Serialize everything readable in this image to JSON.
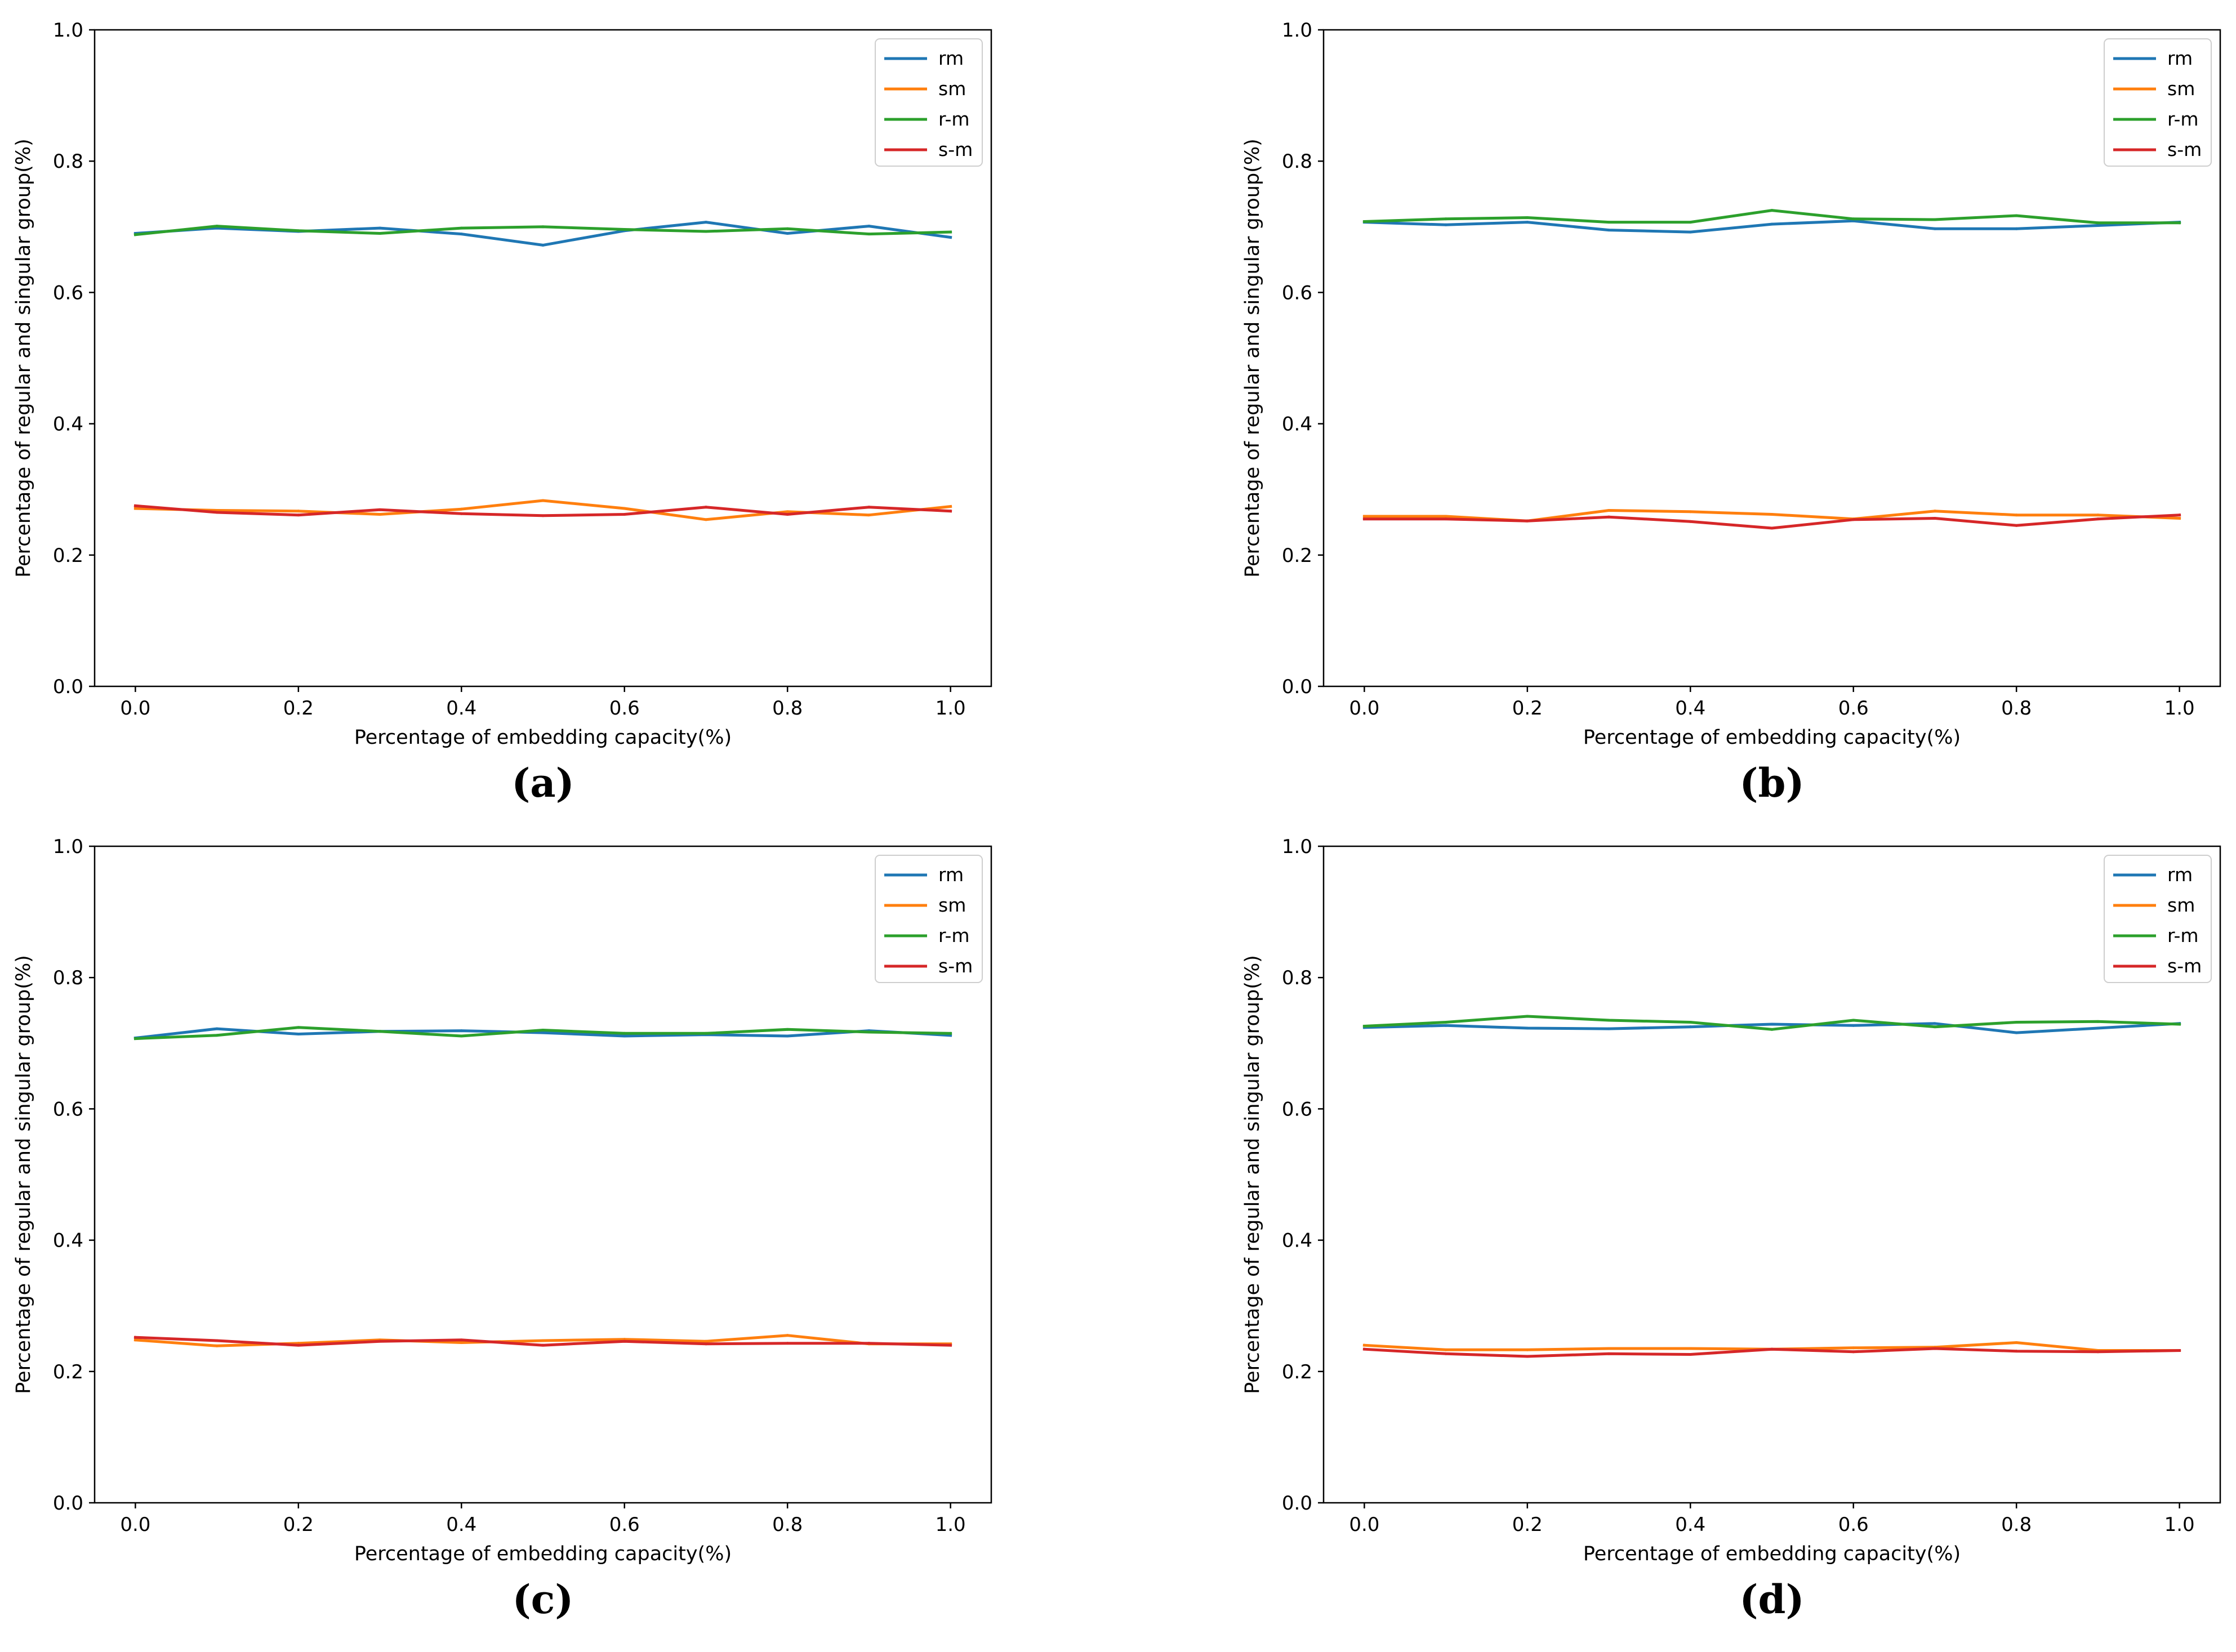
{
  "chart_data": [
    {
      "type": "line",
      "caption": "(a)",
      "xlabel": "Percentage of embedding capacity(%)",
      "ylabel": "Percentage of regular and singular group(%)",
      "xlim": [
        -0.05,
        1.05
      ],
      "ylim": [
        0.0,
        1.0
      ],
      "xticks": [
        "0.0",
        "0.2",
        "0.4",
        "0.6",
        "0.8",
        "1.0"
      ],
      "yticks": [
        "0.0",
        "0.2",
        "0.4",
        "0.6",
        "0.8",
        "1.0"
      ],
      "legend_position": "top-right",
      "x": [
        0.0,
        0.1,
        0.2,
        0.3,
        0.4,
        0.5,
        0.6,
        0.7,
        0.8,
        0.9,
        1.0
      ],
      "series": [
        {
          "name": "rm",
          "color": "#1f77b4",
          "values": [
            0.69,
            0.698,
            0.693,
            0.698,
            0.689,
            0.672,
            0.694,
            0.707,
            0.69,
            0.701,
            0.684
          ]
        },
        {
          "name": "sm",
          "color": "#ff7f0e",
          "values": [
            0.271,
            0.268,
            0.267,
            0.262,
            0.27,
            0.283,
            0.271,
            0.254,
            0.266,
            0.261,
            0.274
          ]
        },
        {
          "name": "r-m",
          "color": "#2ca02c",
          "values": [
            0.688,
            0.701,
            0.694,
            0.69,
            0.698,
            0.7,
            0.696,
            0.693,
            0.697,
            0.689,
            0.692
          ]
        },
        {
          "name": "s-m",
          "color": "#d62728",
          "values": [
            0.275,
            0.265,
            0.261,
            0.269,
            0.263,
            0.26,
            0.262,
            0.273,
            0.262,
            0.273,
            0.267
          ]
        }
      ]
    },
    {
      "type": "line",
      "caption": "(b)",
      "xlabel": "Percentage of embedding capacity(%)",
      "ylabel": "Percentage of regular and singular group(%)",
      "xlim": [
        -0.05,
        1.05
      ],
      "ylim": [
        0.0,
        1.0
      ],
      "xticks": [
        "0.0",
        "0.2",
        "0.4",
        "0.6",
        "0.8",
        "1.0"
      ],
      "yticks": [
        "0.0",
        "0.2",
        "0.4",
        "0.6",
        "0.8",
        "1.0"
      ],
      "legend_position": "top-right",
      "x": [
        0.0,
        0.1,
        0.2,
        0.3,
        0.4,
        0.5,
        0.6,
        0.7,
        0.8,
        0.9,
        1.0
      ],
      "series": [
        {
          "name": "rm",
          "color": "#1f77b4",
          "values": [
            0.707,
            0.703,
            0.707,
            0.695,
            0.692,
            0.704,
            0.709,
            0.697,
            0.697,
            0.702,
            0.707
          ]
        },
        {
          "name": "sm",
          "color": "#ff7f0e",
          "values": [
            0.259,
            0.259,
            0.252,
            0.268,
            0.266,
            0.262,
            0.255,
            0.267,
            0.261,
            0.261,
            0.256
          ]
        },
        {
          "name": "r-m",
          "color": "#2ca02c",
          "values": [
            0.708,
            0.712,
            0.714,
            0.707,
            0.707,
            0.725,
            0.712,
            0.711,
            0.717,
            0.706,
            0.706
          ]
        },
        {
          "name": "s-m",
          "color": "#d62728",
          "values": [
            0.255,
            0.255,
            0.252,
            0.258,
            0.251,
            0.241,
            0.254,
            0.256,
            0.245,
            0.255,
            0.261
          ]
        }
      ]
    },
    {
      "type": "line",
      "caption": "(c)",
      "xlabel": "Percentage of embedding capacity(%)",
      "ylabel": "Percentage of regular and singular group(%)",
      "xlim": [
        -0.05,
        1.05
      ],
      "ylim": [
        0.0,
        1.0
      ],
      "xticks": [
        "0.0",
        "0.2",
        "0.4",
        "0.6",
        "0.8",
        "1.0"
      ],
      "yticks": [
        "0.0",
        "0.2",
        "0.4",
        "0.6",
        "0.8",
        "1.0"
      ],
      "legend_position": "top-right",
      "x": [
        0.0,
        0.1,
        0.2,
        0.3,
        0.4,
        0.5,
        0.6,
        0.7,
        0.8,
        0.9,
        1.0
      ],
      "series": [
        {
          "name": "rm",
          "color": "#1f77b4",
          "values": [
            0.708,
            0.722,
            0.714,
            0.718,
            0.719,
            0.716,
            0.711,
            0.713,
            0.711,
            0.719,
            0.712
          ]
        },
        {
          "name": "sm",
          "color": "#ff7f0e",
          "values": [
            0.248,
            0.239,
            0.243,
            0.248,
            0.244,
            0.247,
            0.249,
            0.246,
            0.255,
            0.242,
            0.242
          ]
        },
        {
          "name": "r-m",
          "color": "#2ca02c",
          "values": [
            0.707,
            0.712,
            0.724,
            0.718,
            0.711,
            0.72,
            0.715,
            0.715,
            0.721,
            0.717,
            0.715
          ]
        },
        {
          "name": "s-m",
          "color": "#d62728",
          "values": [
            0.252,
            0.247,
            0.24,
            0.246,
            0.248,
            0.24,
            0.246,
            0.242,
            0.243,
            0.243,
            0.24
          ]
        }
      ]
    },
    {
      "type": "line",
      "caption": "(d)",
      "xlabel": "Percentage of embedding capacity(%)",
      "ylabel": "Percentage of regular and singular group(%)",
      "xlim": [
        -0.05,
        1.05
      ],
      "ylim": [
        0.0,
        1.0
      ],
      "xticks": [
        "0.0",
        "0.2",
        "0.4",
        "0.6",
        "0.8",
        "1.0"
      ],
      "yticks": [
        "0.0",
        "0.2",
        "0.4",
        "0.6",
        "0.8",
        "1.0"
      ],
      "legend_position": "top-right",
      "x": [
        0.0,
        0.1,
        0.2,
        0.3,
        0.4,
        0.5,
        0.6,
        0.7,
        0.8,
        0.9,
        1.0
      ],
      "series": [
        {
          "name": "rm",
          "color": "#1f77b4",
          "values": [
            0.724,
            0.727,
            0.723,
            0.722,
            0.725,
            0.729,
            0.727,
            0.73,
            0.716,
            0.723,
            0.73
          ]
        },
        {
          "name": "sm",
          "color": "#ff7f0e",
          "values": [
            0.24,
            0.233,
            0.233,
            0.235,
            0.235,
            0.234,
            0.236,
            0.237,
            0.244,
            0.232,
            0.232
          ]
        },
        {
          "name": "r-m",
          "color": "#2ca02c",
          "values": [
            0.726,
            0.732,
            0.741,
            0.735,
            0.732,
            0.721,
            0.735,
            0.725,
            0.732,
            0.733,
            0.729
          ]
        },
        {
          "name": "s-m",
          "color": "#d62728",
          "values": [
            0.234,
            0.227,
            0.223,
            0.227,
            0.226,
            0.234,
            0.23,
            0.235,
            0.231,
            0.23,
            0.232
          ]
        }
      ]
    }
  ]
}
